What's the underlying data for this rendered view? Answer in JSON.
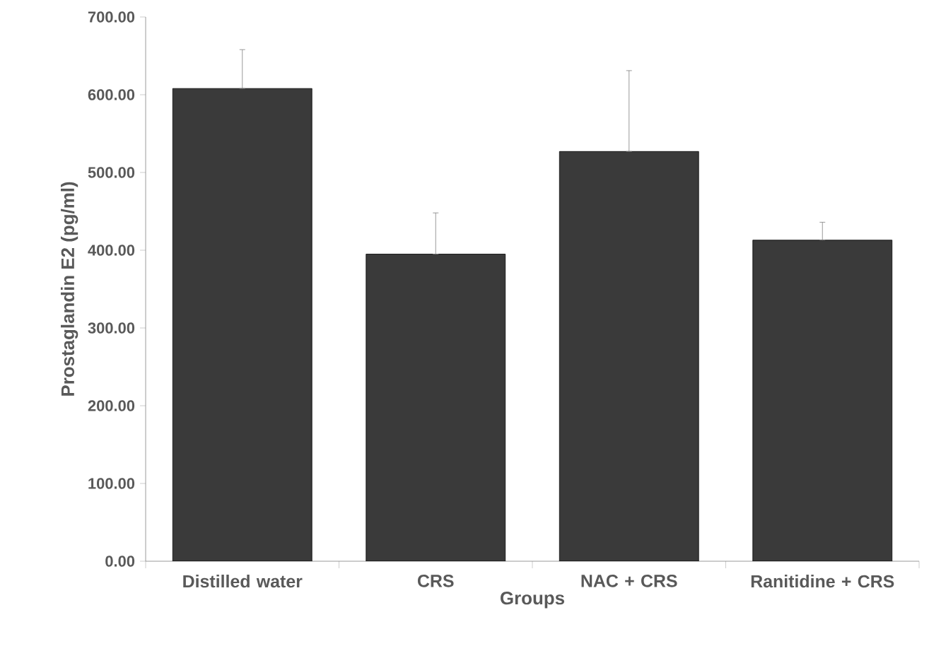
{
  "chart_data": {
    "type": "bar",
    "xlabel": "Groups",
    "ylabel": "Prostaglandin E2 (pg/ml)",
    "categories": [
      "Distilled water",
      "CRS",
      "NAC + CRS",
      "Ranitidine + CRS"
    ],
    "values": [
      608,
      395,
      527,
      413
    ],
    "errors": [
      [
        608,
        658
      ],
      [
        395,
        448
      ],
      [
        527,
        631
      ],
      [
        413,
        436
      ]
    ],
    "color": "#3a3a3a",
    "ylim": [
      0,
      700
    ],
    "yticks": [
      {
        "value": 0,
        "label": "0.00"
      },
      {
        "value": 100,
        "label": "100.00"
      },
      {
        "value": 200,
        "label": "200.00"
      },
      {
        "value": 300,
        "label": "300.00"
      },
      {
        "value": 400,
        "label": "400.00"
      },
      {
        "value": 500,
        "label": "500.00"
      },
      {
        "value": 600,
        "label": "600.00"
      },
      {
        "value": 700,
        "label": "700.00"
      }
    ],
    "grid": false
  }
}
